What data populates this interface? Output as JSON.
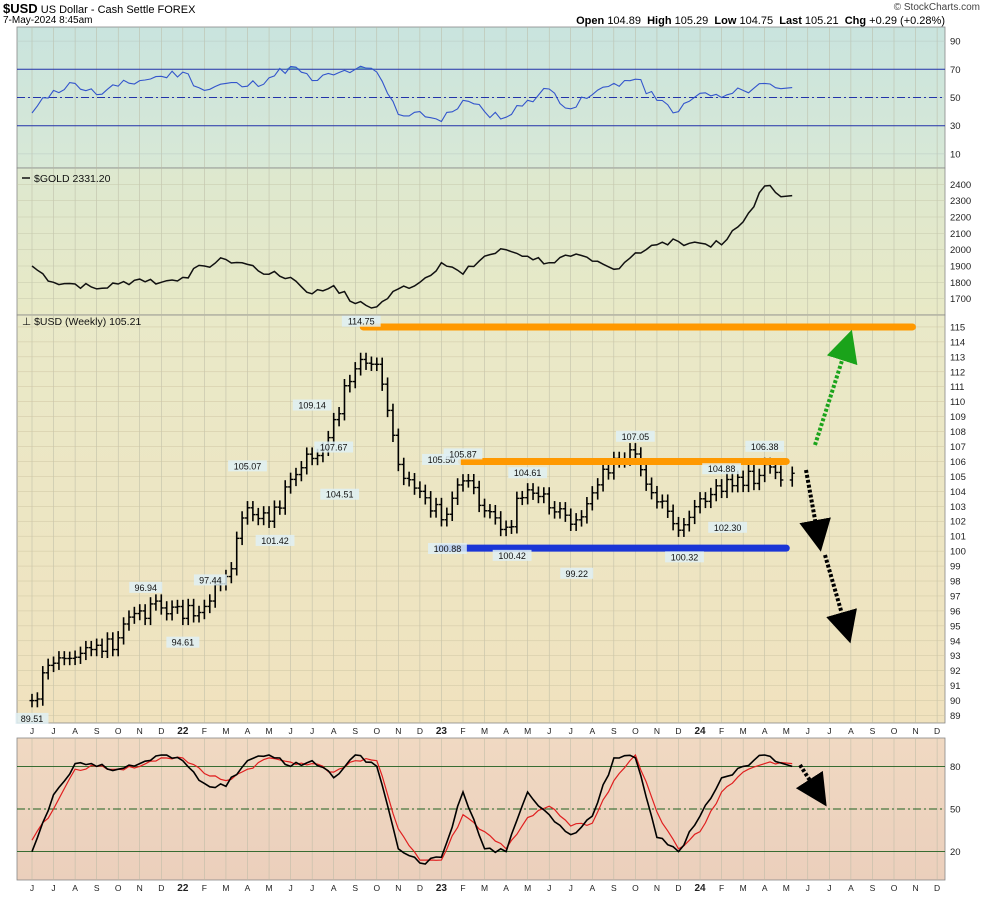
{
  "header": {
    "symbol": "$USD",
    "name": "US Dollar - Cash Settle",
    "exchange": "FOREX",
    "date": "7-May-2024 8:45am",
    "copyright": "© StockCharts.com",
    "open_label": "Open",
    "open": "104.89",
    "high_label": "High",
    "high": "105.29",
    "low_label": "Low",
    "low": "104.75",
    "last_label": "Last",
    "last": "105.21",
    "chg_label": "Chg",
    "chg": "+0.29 (+0.28%)"
  },
  "colors": {
    "rsi_bg": "#cfe5dc",
    "gold_bg": "#e6e9c8",
    "main_bg": "#ede6c4",
    "stoch_bg": "#f0d6c0",
    "orange_line": "#ff9900",
    "blue_line": "#1a35d6",
    "green_arrow": "#1aa31a",
    "rsi_line": "#3355cc",
    "stoch_signal": "#e02020"
  },
  "chart_data": [
    {
      "type": "line",
      "panel": "rsi",
      "ylim": [
        0,
        100
      ],
      "yticks": [
        90,
        70,
        50,
        30,
        10
      ],
      "reference_lines": [
        70,
        50,
        30
      ],
      "x": [
        "2021-06",
        "2021-07",
        "2021-08",
        "2021-09",
        "2021-10",
        "2021-11",
        "2021-12",
        "2022-01",
        "2022-02",
        "2022-03",
        "2022-04",
        "2022-05",
        "2022-06",
        "2022-07",
        "2022-08",
        "2022-09",
        "2022-10",
        "2022-11",
        "2022-12",
        "2023-01",
        "2023-02",
        "2023-03",
        "2023-04",
        "2023-05",
        "2023-06",
        "2023-07",
        "2023-08",
        "2023-09",
        "2023-10",
        "2023-11",
        "2023-12",
        "2024-01",
        "2024-02",
        "2024-03",
        "2024-04",
        "2024-05"
      ],
      "values": [
        39,
        55,
        60,
        52,
        58,
        62,
        65,
        68,
        55,
        60,
        58,
        64,
        72,
        62,
        66,
        70,
        68,
        38,
        40,
        33,
        48,
        40,
        36,
        48,
        56,
        42,
        52,
        60,
        63,
        48,
        40,
        53,
        50,
        55,
        60,
        57
      ]
    },
    {
      "type": "line",
      "panel": "gold",
      "legend": "$GOLD 2331.20",
      "ylim": [
        1600,
        2500
      ],
      "yticks": [
        2400,
        2300,
        2200,
        2100,
        2000,
        1900,
        1800,
        1700
      ],
      "x": [
        "2021-06",
        "2021-07",
        "2021-08",
        "2021-09",
        "2021-10",
        "2021-11",
        "2021-12",
        "2022-01",
        "2022-02",
        "2022-03",
        "2022-04",
        "2022-05",
        "2022-06",
        "2022-07",
        "2022-08",
        "2022-09",
        "2022-10",
        "2022-11",
        "2022-12",
        "2023-01",
        "2023-02",
        "2023-03",
        "2023-04",
        "2023-05",
        "2023-06",
        "2023-07",
        "2023-08",
        "2023-09",
        "2023-10",
        "2023-11",
        "2023-12",
        "2024-01",
        "2024-02",
        "2024-03",
        "2024-04",
        "2024-05"
      ],
      "values": [
        1900,
        1800,
        1790,
        1760,
        1790,
        1820,
        1800,
        1830,
        1900,
        1940,
        1910,
        1850,
        1830,
        1730,
        1780,
        1670,
        1650,
        1760,
        1800,
        1920,
        1850,
        1960,
        2000,
        1960,
        1920,
        1960,
        1930,
        1880,
        1980,
        2030,
        2050,
        2040,
        2030,
        2170,
        2390,
        2331
      ]
    },
    {
      "type": "ohlc",
      "panel": "price",
      "legend": "$USD (Weekly) 105.21",
      "ylim": [
        88.5,
        115.8
      ],
      "yticks": [
        115,
        114,
        113,
        112,
        111,
        110,
        109,
        108,
        107,
        106,
        105,
        104,
        103,
        102,
        101,
        100,
        99,
        98,
        97,
        96,
        95,
        94,
        93,
        92,
        91,
        90,
        89
      ],
      "x": [
        "2021-06",
        "2021-07",
        "2021-08",
        "2021-09",
        "2021-10",
        "2021-11",
        "2021-12",
        "2022-01",
        "2022-02",
        "2022-03",
        "2022-04",
        "2022-05",
        "2022-06",
        "2022-07",
        "2022-08",
        "2022-09",
        "2022-10",
        "2022-11",
        "2022-12",
        "2023-01",
        "2023-02",
        "2023-03",
        "2023-04",
        "2023-05",
        "2023-06",
        "2023-07",
        "2023-08",
        "2023-09",
        "2023-10",
        "2023-11",
        "2023-12",
        "2024-01",
        "2024-02",
        "2024-03",
        "2024-04",
        "2024-05"
      ],
      "values": [
        90.0,
        92.5,
        92.9,
        93.7,
        94.2,
        96.0,
        96.2,
        95.5,
        96.3,
        98.3,
        102.9,
        102.0,
        104.8,
        106.2,
        108.8,
        112.2,
        112.5,
        105.8,
        104.0,
        102.1,
        104.7,
        102.7,
        101.6,
        104.1,
        102.9,
        101.8,
        103.9,
        106.2,
        106.5,
        103.3,
        101.4,
        103.5,
        104.0,
        104.4,
        105.8,
        105.21
      ],
      "annotations": [
        {
          "x": "2021-06",
          "value": 89.51,
          "label": "89.51"
        },
        {
          "x": "2021-11",
          "value": 96.94,
          "label": "96.94"
        },
        {
          "x": "2022-01",
          "value": 94.61,
          "label": "94.61"
        },
        {
          "x": "2022-02",
          "value": 97.44,
          "label": "97.44"
        },
        {
          "x": "2022-04",
          "value": 105.07,
          "label": "105.07"
        },
        {
          "x": "2022-05",
          "value": 101.42,
          "label": "101.42"
        },
        {
          "x": "2022-07",
          "value": 109.14,
          "label": "109.14"
        },
        {
          "x": "2022-08",
          "value": 104.51,
          "label": "104.51"
        },
        {
          "x": "2022-08",
          "value": 107.67,
          "label": "107.67"
        },
        {
          "x": "2022-09",
          "value": 114.75,
          "label": "114.75"
        },
        {
          "x": "2023-01",
          "value": 105.5,
          "label": "105.50"
        },
        {
          "x": "2023-01",
          "value": 100.88,
          "label": "100.88"
        },
        {
          "x": "2023-02",
          "value": 105.87,
          "label": "105.87"
        },
        {
          "x": "2023-04",
          "value": 100.42,
          "label": "100.42"
        },
        {
          "x": "2023-05",
          "value": 104.61,
          "label": "104.61"
        },
        {
          "x": "2023-07",
          "value": 99.22,
          "label": "99.22"
        },
        {
          "x": "2023-10",
          "value": 107.05,
          "label": "107.05"
        },
        {
          "x": "2023-12",
          "value": 100.32,
          "label": "100.32"
        },
        {
          "x": "2024-02",
          "value": 104.88,
          "label": "104.88"
        },
        {
          "x": "2024-02",
          "value": 102.3,
          "label": "102.30"
        },
        {
          "x": "2024-04",
          "value": 106.38,
          "label": "106.38"
        }
      ],
      "trend_lines": [
        {
          "color": "orange",
          "value": 115.0,
          "from": "2022-09",
          "to": "2024-09"
        },
        {
          "color": "orange",
          "value": 106.0,
          "from": "2023-01",
          "to": "2024-05"
        },
        {
          "color": "blue",
          "value": 100.2,
          "from": "2022-12",
          "to": "2024-05"
        }
      ]
    },
    {
      "type": "line",
      "panel": "stochastic",
      "ylim": [
        0,
        100
      ],
      "yticks": [
        80,
        50,
        20
      ],
      "reference_lines": [
        80,
        50,
        20
      ],
      "x": [
        "2021-06",
        "2021-07",
        "2021-08",
        "2021-09",
        "2021-10",
        "2021-11",
        "2021-12",
        "2022-01",
        "2022-02",
        "2022-03",
        "2022-04",
        "2022-05",
        "2022-06",
        "2022-07",
        "2022-08",
        "2022-09",
        "2022-10",
        "2022-11",
        "2022-12",
        "2023-01",
        "2023-02",
        "2023-03",
        "2023-04",
        "2023-05",
        "2023-06",
        "2023-07",
        "2023-08",
        "2023-09",
        "2023-10",
        "2023-11",
        "2023-12",
        "2024-01",
        "2024-02",
        "2024-03",
        "2024-04",
        "2024-05"
      ],
      "series": [
        {
          "values": [
            20,
            60,
            82,
            80,
            78,
            82,
            88,
            84,
            68,
            66,
            84,
            88,
            80,
            84,
            72,
            88,
            80,
            22,
            12,
            16,
            62,
            22,
            20,
            62,
            46,
            32,
            45,
            86,
            86,
            30,
            20,
            45,
            72,
            80,
            88,
            80
          ]
        },
        {
          "values": [
            28,
            50,
            78,
            80,
            78,
            80,
            86,
            86,
            75,
            70,
            78,
            86,
            83,
            82,
            76,
            84,
            84,
            36,
            14,
            14,
            46,
            34,
            22,
            44,
            52,
            38,
            40,
            70,
            88,
            48,
            22,
            34,
            62,
            76,
            82,
            82
          ]
        }
      ]
    }
  ],
  "x_axis": {
    "labels": [
      "J",
      "J",
      "A",
      "S",
      "O",
      "N",
      "D",
      "22",
      "F",
      "M",
      "A",
      "M",
      "J",
      "J",
      "A",
      "S",
      "O",
      "N",
      "D",
      "23",
      "F",
      "M",
      "A",
      "M",
      "J",
      "J",
      "A",
      "S",
      "O",
      "N",
      "D",
      "24",
      "F",
      "M",
      "A",
      "M",
      "J",
      "J",
      "A",
      "S",
      "O",
      "N",
      "D"
    ],
    "bold": [
      "22",
      "23",
      "24"
    ]
  }
}
